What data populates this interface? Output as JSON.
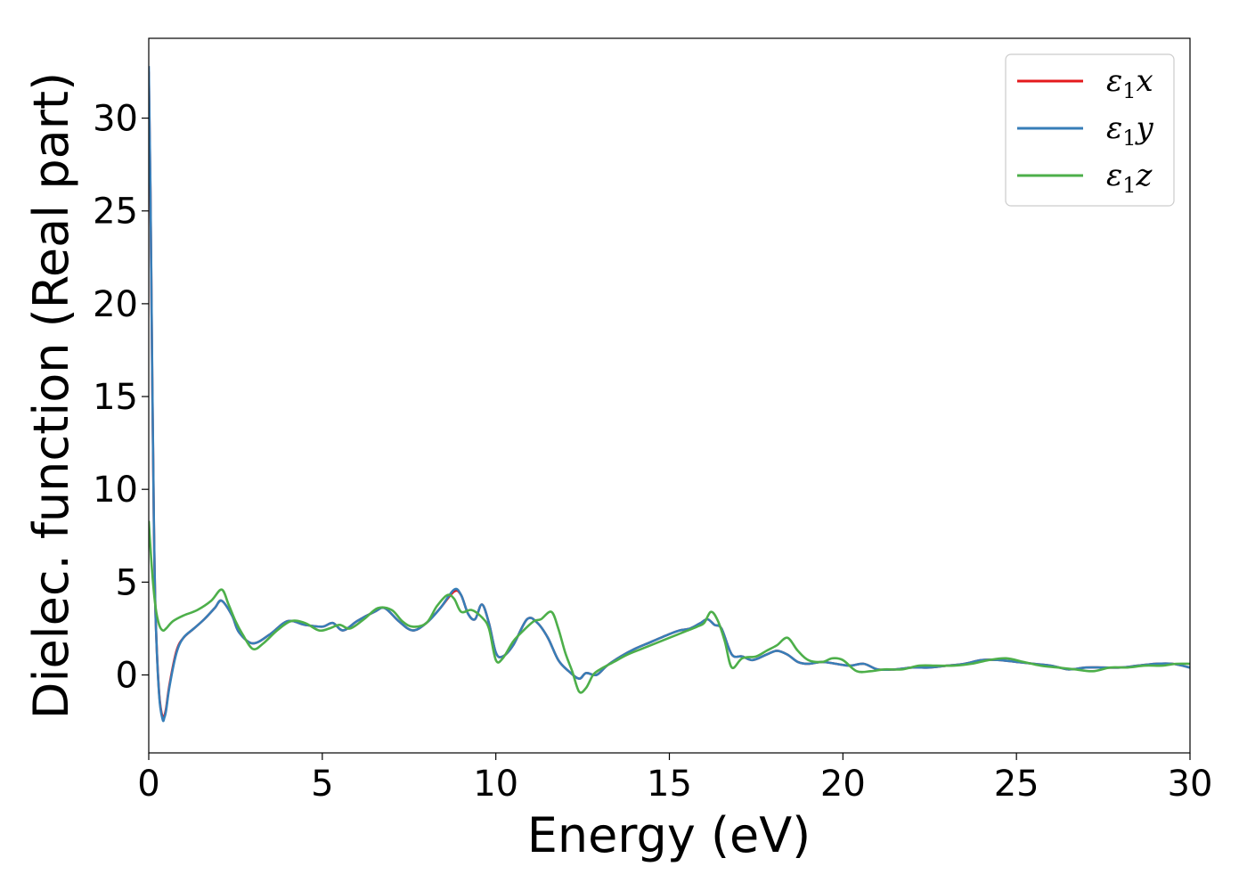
{
  "chart_data": {
    "type": "line",
    "title": "",
    "xlabel": "Energy (eV)",
    "ylabel": "Dielec. function (Real part)",
    "xlim": [
      0,
      30
    ],
    "ylim": [
      -4.2,
      34.3
    ],
    "xticks": [
      0,
      5,
      10,
      15,
      20,
      25,
      30
    ],
    "yticks": [
      0,
      5,
      10,
      15,
      20,
      25,
      30
    ],
    "grid": false,
    "legend_position": "top-right",
    "series": [
      {
        "name": "ε1x",
        "legend_base": "ε",
        "legend_sub": "1",
        "legend_suffix": "x",
        "color": "#e41a1c",
        "x": [
          0,
          0.05,
          0.1,
          0.15,
          0.2,
          0.3,
          0.4,
          0.45,
          0.5,
          0.6,
          0.8,
          1.0,
          1.3,
          1.6,
          1.9,
          2.1,
          2.4,
          2.6,
          3.0,
          3.5,
          4.0,
          4.5,
          5.0,
          5.3,
          5.6,
          6.0,
          6.5,
          6.8,
          7.2,
          7.6,
          8.0,
          8.4,
          8.8,
          9.0,
          9.2,
          9.4,
          9.6,
          9.8,
          10.0,
          10.2,
          10.5,
          10.9,
          11.2,
          11.5,
          11.8,
          12.1,
          12.4,
          12.6,
          12.9,
          13.2,
          13.6,
          14.0,
          14.5,
          15.0,
          15.3,
          15.6,
          15.9,
          16.1,
          16.3,
          16.5,
          16.8,
          17.1,
          17.4,
          17.8,
          18.1,
          18.4,
          18.7,
          19.0,
          19.4,
          19.8,
          20.2,
          20.6,
          21.0,
          21.5,
          22.0,
          22.5,
          23.0,
          23.5,
          24.0,
          24.5,
          25.0,
          25.5,
          26.0,
          26.5,
          27.0,
          27.5,
          28.0,
          28.5,
          29.0,
          29.5,
          30.0
        ],
        "values": [
          32.5,
          26.0,
          16.0,
          8.0,
          3.0,
          -1.0,
          -2.3,
          -2.2,
          -1.8,
          -0.5,
          1.3,
          2.0,
          2.5,
          3.0,
          3.6,
          4.0,
          3.2,
          2.3,
          1.7,
          2.2,
          2.9,
          2.7,
          2.6,
          2.8,
          2.4,
          2.9,
          3.4,
          3.6,
          2.9,
          2.4,
          2.8,
          3.6,
          4.5,
          4.3,
          3.3,
          3.0,
          3.8,
          2.8,
          1.2,
          1.0,
          1.6,
          3.0,
          2.8,
          2.0,
          0.8,
          0.2,
          -0.2,
          0.1,
          0.0,
          0.5,
          1.0,
          1.4,
          1.8,
          2.2,
          2.4,
          2.5,
          2.8,
          3.0,
          2.7,
          2.5,
          1.1,
          1.0,
          0.8,
          1.1,
          1.3,
          1.1,
          0.7,
          0.6,
          0.7,
          0.6,
          0.5,
          0.6,
          0.3,
          0.3,
          0.4,
          0.4,
          0.5,
          0.6,
          0.8,
          0.8,
          0.7,
          0.6,
          0.5,
          0.3,
          0.4,
          0.4,
          0.4,
          0.5,
          0.6,
          0.6,
          0.4
        ]
      },
      {
        "name": "ε1y",
        "legend_base": "ε",
        "legend_sub": "1",
        "legend_suffix": "y",
        "color": "#377eb8",
        "x": [
          0,
          0.05,
          0.1,
          0.15,
          0.2,
          0.3,
          0.4,
          0.45,
          0.5,
          0.6,
          0.8,
          1.0,
          1.3,
          1.6,
          1.9,
          2.1,
          2.4,
          2.6,
          3.0,
          3.5,
          4.0,
          4.5,
          5.0,
          5.3,
          5.6,
          6.0,
          6.5,
          6.8,
          7.2,
          7.6,
          8.0,
          8.4,
          8.8,
          9.0,
          9.2,
          9.4,
          9.6,
          9.8,
          10.0,
          10.2,
          10.5,
          10.9,
          11.2,
          11.5,
          11.8,
          12.1,
          12.4,
          12.6,
          12.9,
          13.2,
          13.6,
          14.0,
          14.5,
          15.0,
          15.3,
          15.6,
          15.9,
          16.1,
          16.3,
          16.5,
          16.8,
          17.1,
          17.4,
          17.8,
          18.1,
          18.4,
          18.7,
          19.0,
          19.4,
          19.8,
          20.2,
          20.6,
          21.0,
          21.5,
          22.0,
          22.5,
          23.0,
          23.5,
          24.0,
          24.5,
          25.0,
          25.5,
          26.0,
          26.5,
          27.0,
          27.5,
          28.0,
          28.5,
          29.0,
          29.5,
          30.0
        ],
        "values": [
          32.8,
          26.2,
          16.2,
          8.1,
          3.0,
          -1.1,
          -2.4,
          -2.3,
          -1.9,
          -0.6,
          1.2,
          2.0,
          2.5,
          3.0,
          3.6,
          4.0,
          3.2,
          2.3,
          1.7,
          2.2,
          2.9,
          2.7,
          2.6,
          2.8,
          2.4,
          2.9,
          3.4,
          3.6,
          2.9,
          2.4,
          2.8,
          3.6,
          4.6,
          4.3,
          3.3,
          3.0,
          3.8,
          2.8,
          1.2,
          1.0,
          1.6,
          3.0,
          2.8,
          2.0,
          0.8,
          0.2,
          -0.2,
          0.1,
          0.0,
          0.5,
          1.0,
          1.4,
          1.8,
          2.2,
          2.4,
          2.5,
          2.8,
          3.0,
          2.7,
          2.5,
          1.1,
          1.0,
          0.8,
          1.1,
          1.3,
          1.1,
          0.7,
          0.6,
          0.7,
          0.6,
          0.5,
          0.6,
          0.3,
          0.3,
          0.4,
          0.4,
          0.5,
          0.6,
          0.8,
          0.8,
          0.7,
          0.6,
          0.5,
          0.3,
          0.4,
          0.4,
          0.4,
          0.5,
          0.6,
          0.6,
          0.4
        ]
      },
      {
        "name": "ε1z",
        "legend_base": "ε",
        "legend_sub": "1",
        "legend_suffix": "z",
        "color": "#4daf4a",
        "x": [
          0,
          0.1,
          0.2,
          0.3,
          0.4,
          0.5,
          0.7,
          1.0,
          1.4,
          1.8,
          2.1,
          2.3,
          2.5,
          2.7,
          3.0,
          3.3,
          3.7,
          4.1,
          4.5,
          4.9,
          5.2,
          5.5,
          5.8,
          6.2,
          6.6,
          7.0,
          7.3,
          7.6,
          8.0,
          8.3,
          8.6,
          8.8,
          9.0,
          9.3,
          9.6,
          9.8,
          10.0,
          10.2,
          10.5,
          10.8,
          11.1,
          11.3,
          11.6,
          11.8,
          12.0,
          12.2,
          12.4,
          12.6,
          12.8,
          13.0,
          13.4,
          13.8,
          14.2,
          14.6,
          15.0,
          15.4,
          15.8,
          16.0,
          16.2,
          16.4,
          16.6,
          16.8,
          17.1,
          17.5,
          17.8,
          18.1,
          18.4,
          18.7,
          19.0,
          19.4,
          19.7,
          20.0,
          20.4,
          20.8,
          21.2,
          21.7,
          22.2,
          22.7,
          23.2,
          23.7,
          24.2,
          24.7,
          25.2,
          25.7,
          26.2,
          26.7,
          27.2,
          27.7,
          28.2,
          28.7,
          29.2,
          29.6,
          30.0
        ],
        "values": [
          8.3,
          5.5,
          3.6,
          2.7,
          2.4,
          2.5,
          2.9,
          3.2,
          3.5,
          4.0,
          4.6,
          3.8,
          2.9,
          2.2,
          1.4,
          1.7,
          2.4,
          2.9,
          2.8,
          2.4,
          2.5,
          2.7,
          2.5,
          3.0,
          3.6,
          3.5,
          2.9,
          2.6,
          2.8,
          3.7,
          4.3,
          4.1,
          3.4,
          3.5,
          3.1,
          2.5,
          0.8,
          0.9,
          1.8,
          2.4,
          2.9,
          3.0,
          3.4,
          2.5,
          1.2,
          0.2,
          -0.9,
          -0.7,
          0.0,
          0.3,
          0.7,
          1.1,
          1.4,
          1.7,
          2.0,
          2.3,
          2.6,
          2.8,
          3.4,
          2.9,
          1.8,
          0.4,
          0.9,
          1.0,
          1.3,
          1.6,
          2.0,
          1.3,
          0.8,
          0.7,
          0.9,
          0.8,
          0.2,
          0.2,
          0.3,
          0.3,
          0.5,
          0.5,
          0.5,
          0.6,
          0.8,
          0.9,
          0.7,
          0.5,
          0.4,
          0.3,
          0.2,
          0.4,
          0.4,
          0.5,
          0.5,
          0.6,
          0.6
        ]
      }
    ]
  }
}
